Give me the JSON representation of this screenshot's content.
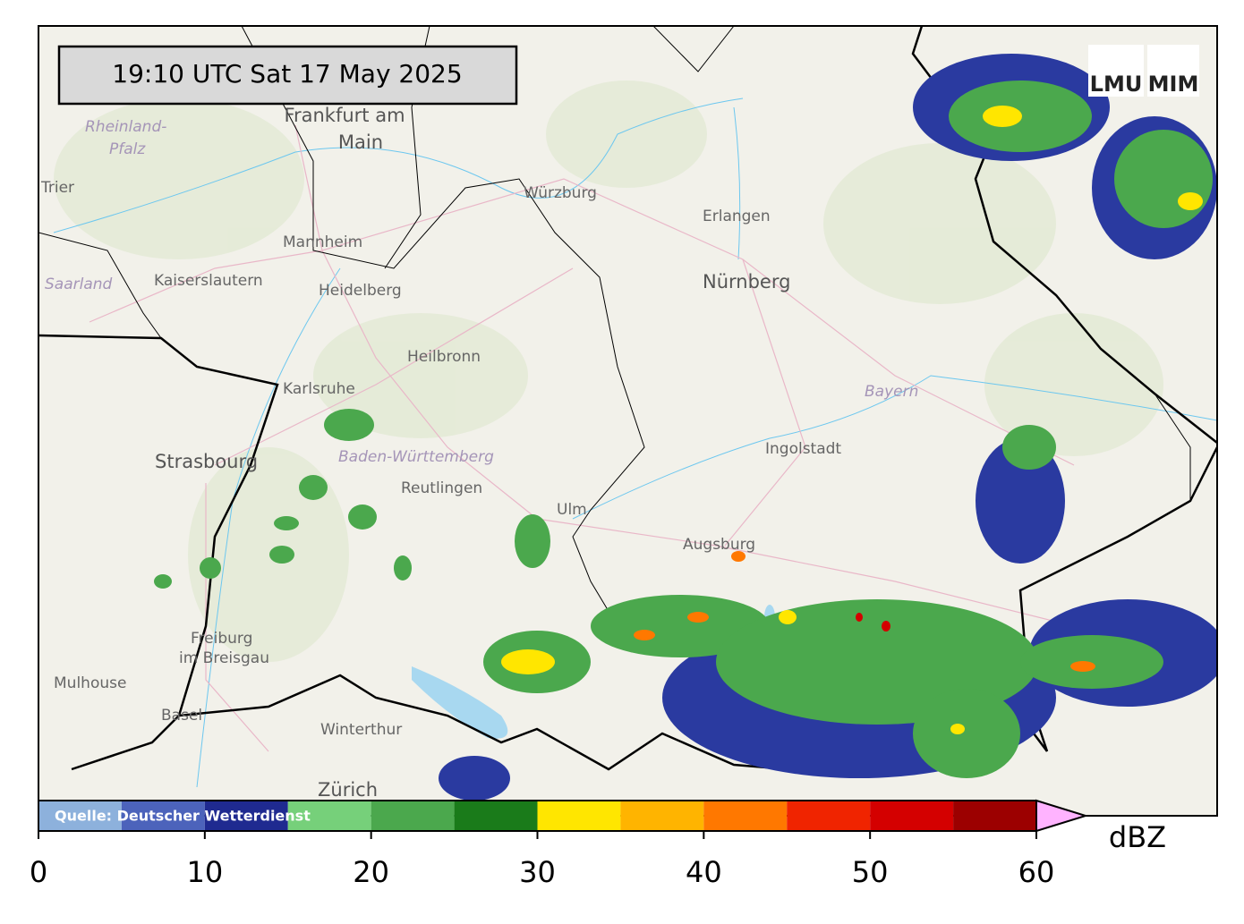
{
  "timestamp": "19:10 UTC  Sat 17 May 2025",
  "logo": {
    "left": "LMU",
    "right": "MIM"
  },
  "places": [
    "Frankfurt am",
    "Main",
    "Rheinland-",
    "Pfalz",
    "Trier",
    "Mannheim",
    "Kaiserslautern",
    "Heidelberg",
    "Saarland",
    "Würzburg",
    "Erlangen",
    "Nürnberg",
    "Heilbronn",
    "Karlsruhe",
    "Bayern",
    "Ingolstadt",
    "Strasbourg",
    "Baden-Württemberg",
    "Reutlingen",
    "Ulm",
    "Augsburg",
    "Freiburg",
    "im Breisgau",
    "Mulhouse",
    "Basel",
    "Winterthur",
    "Zürich"
  ],
  "colorbar": {
    "source": "Quelle: Deutscher Wetterdienst",
    "unit": "dBZ",
    "bounds": [
      0,
      5,
      10,
      15,
      20,
      25,
      30,
      35,
      40,
      45,
      50,
      55,
      60
    ],
    "colors": [
      "#8db1dc",
      "#4c63bb",
      "#1f2a90",
      "#76d07a",
      "#4ba84d",
      "#1a7b1a",
      "#ffe600",
      "#ffb400",
      "#ff7800",
      "#f02400",
      "#d40000",
      "#9c0000"
    ],
    "extend_color": "#ffb3ff",
    "ticks": [
      0,
      10,
      20,
      30,
      40,
      50,
      60
    ]
  }
}
